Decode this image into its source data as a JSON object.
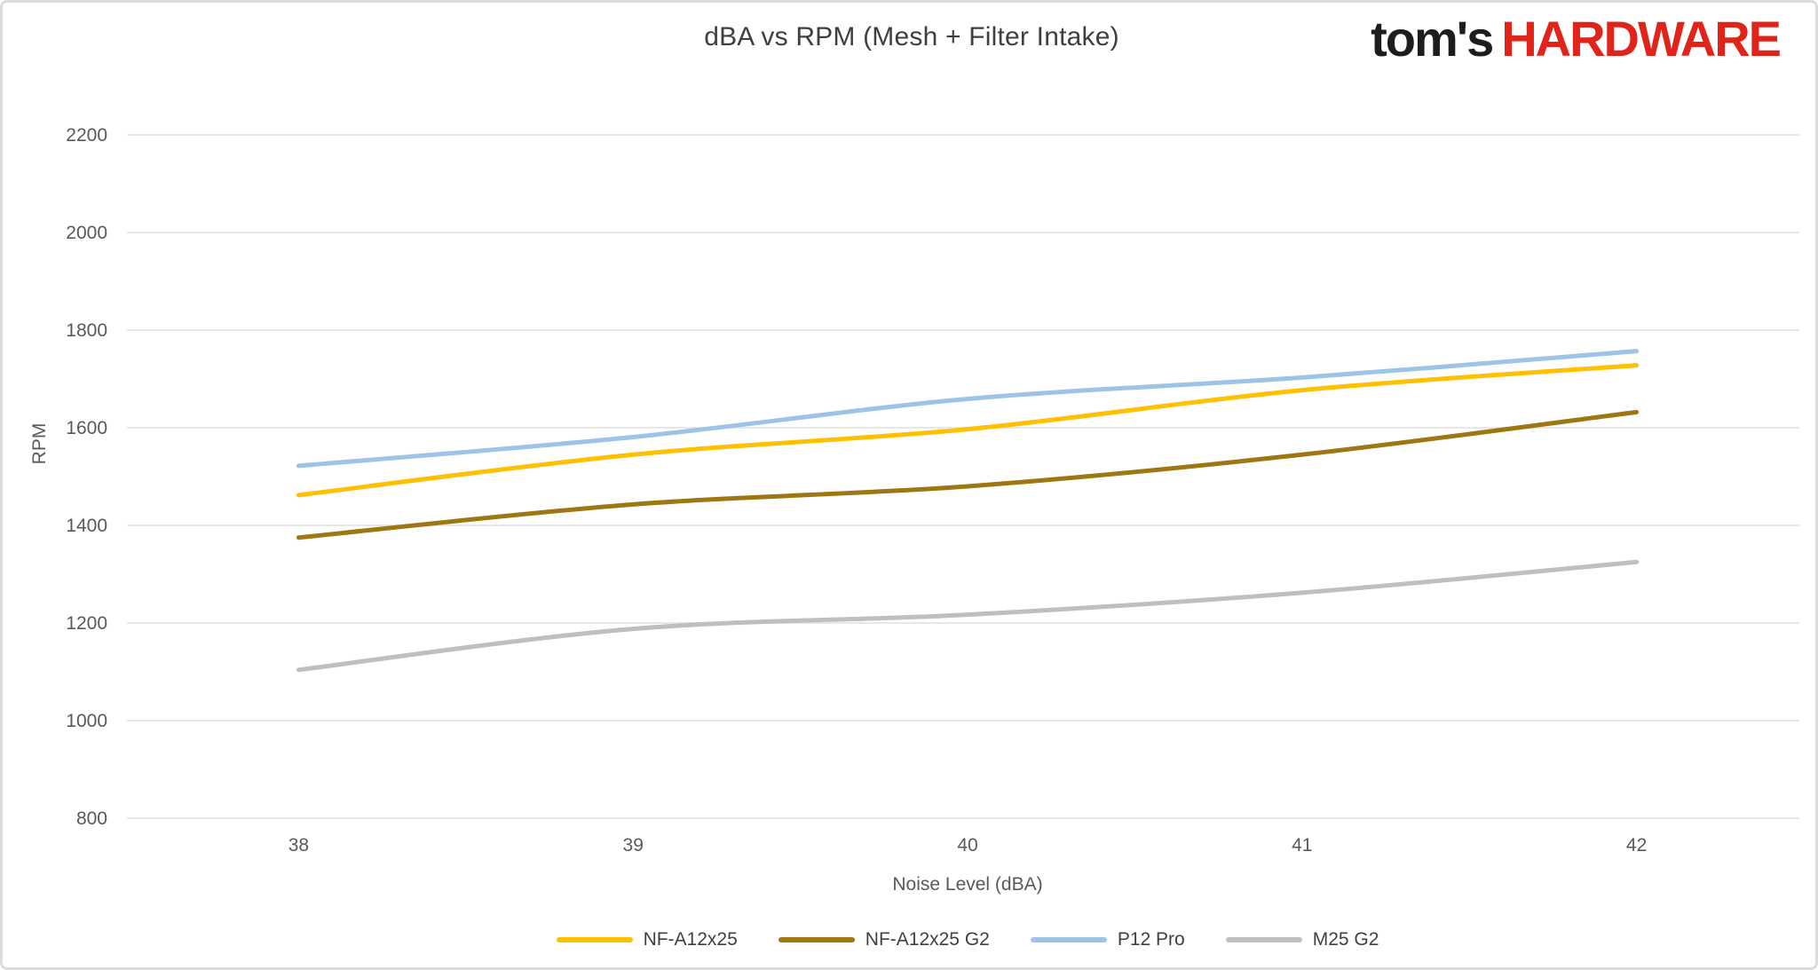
{
  "header": {
    "logo": {
      "prefix": "tom's",
      "suffix": "HARDWARE",
      "prefix_color": "#1d1d1b",
      "suffix_color": "#e2231a"
    }
  },
  "chart_data": {
    "type": "line",
    "title": "dBA vs RPM (Mesh + Filter Intake)",
    "xlabel": "Noise Level (dBA)",
    "ylabel": "RPM",
    "x": [
      38,
      39,
      40,
      41,
      42
    ],
    "xticks": [
      38,
      39,
      40,
      41,
      42
    ],
    "yticks": [
      800,
      1000,
      1200,
      1400,
      1600,
      1800,
      2000,
      2200
    ],
    "xlim": [
      37.5,
      42.5
    ],
    "ylim": [
      800,
      2200
    ],
    "grid": "horizontal-only",
    "line_smoothing": true,
    "legend_position": "bottom-center",
    "axis_text_color": "#595959",
    "gridline_color": "#e7e7e7",
    "series": [
      {
        "name": "NF-A12x25",
        "color": "#FFC000",
        "values": [
          1462,
          1545,
          1597,
          1677,
          1728
        ]
      },
      {
        "name": "NF-A12x25 G2",
        "color": "#9E7612",
        "values": [
          1375,
          1443,
          1480,
          1545,
          1632
        ]
      },
      {
        "name": "P12 Pro",
        "color": "#9DC3E6",
        "values": [
          1522,
          1581,
          1659,
          1703,
          1757
        ]
      },
      {
        "name": "M25 G2",
        "color": "#BFBFBF",
        "values": [
          1104,
          1188,
          1217,
          1262,
          1325
        ]
      }
    ]
  }
}
